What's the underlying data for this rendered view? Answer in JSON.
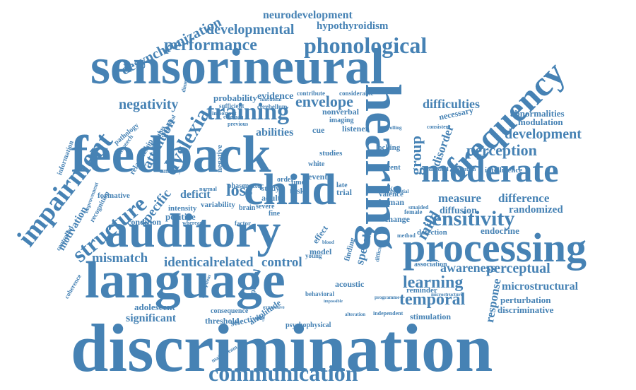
{
  "colors": {
    "word": "#4682B4",
    "background": "#FFFFFF"
  },
  "words": [
    {
      "text": "discrimination"
    },
    {
      "text": "sensorineural"
    },
    {
      "text": "language"
    },
    {
      "text": "auditory"
    },
    {
      "text": "feedback"
    },
    {
      "text": "hearing"
    },
    {
      "text": "processing"
    },
    {
      "text": "moderate"
    },
    {
      "text": "child"
    },
    {
      "text": "frequency"
    },
    {
      "text": "impairment"
    },
    {
      "text": "communication"
    },
    {
      "text": "structure"
    },
    {
      "text": "training"
    },
    {
      "text": "phonological"
    },
    {
      "text": "sensitivity"
    },
    {
      "text": "perception"
    },
    {
      "text": "development"
    },
    {
      "text": "developmental"
    },
    {
      "text": "performance"
    },
    {
      "text": "dyslexia"
    },
    {
      "text": "learning"
    },
    {
      "text": "perceptual"
    },
    {
      "text": "temporal"
    },
    {
      "text": "envelope"
    },
    {
      "text": "negativity"
    },
    {
      "text": "difficulties"
    },
    {
      "text": "desynchronization"
    },
    {
      "text": "neurodevelopment"
    },
    {
      "text": "hypothyroidism"
    },
    {
      "text": "group"
    },
    {
      "text": "loss"
    },
    {
      "text": "mild"
    },
    {
      "text": "mismatch"
    },
    {
      "text": "identical"
    },
    {
      "text": "related"
    },
    {
      "text": "control"
    },
    {
      "text": "specific"
    },
    {
      "text": "attention"
    },
    {
      "text": "motivation"
    },
    {
      "text": "awareness"
    },
    {
      "text": "measure"
    },
    {
      "text": "difference"
    },
    {
      "text": "microstructural"
    },
    {
      "text": "abilities"
    },
    {
      "text": "significant"
    },
    {
      "text": "adolescent"
    },
    {
      "text": "deficit"
    },
    {
      "text": "randomized"
    },
    {
      "text": "response"
    },
    {
      "text": "disorder"
    },
    {
      "text": "speech"
    },
    {
      "text": "evidence"
    },
    {
      "text": "probability"
    },
    {
      "text": "abnormalities"
    },
    {
      "text": "modulation"
    },
    {
      "text": "perturbation"
    },
    {
      "text": "discriminative"
    },
    {
      "text": "diffusion"
    },
    {
      "text": "endocrine"
    },
    {
      "text": "stimulation"
    },
    {
      "text": "reminder"
    },
    {
      "text": "acoustic"
    },
    {
      "text": "selectivity"
    },
    {
      "text": "amplitude"
    },
    {
      "text": "threshold"
    },
    {
      "text": "condition"
    },
    {
      "text": "positive"
    },
    {
      "text": "intensity"
    },
    {
      "text": "variability"
    },
    {
      "text": "formative"
    },
    {
      "text": "relationship"
    },
    {
      "text": "information"
    },
    {
      "text": "recognition"
    },
    {
      "text": "controlled"
    },
    {
      "text": "coherence"
    },
    {
      "text": "pathology"
    },
    {
      "text": "nonspeech"
    },
    {
      "text": "stimulus"
    },
    {
      "text": "negative"
    },
    {
      "text": "adult"
    },
    {
      "text": "task"
    },
    {
      "text": "event"
    },
    {
      "text": "trial"
    },
    {
      "text": "cue"
    },
    {
      "text": "listener"
    },
    {
      "text": "nonverbal"
    },
    {
      "text": "imaging"
    },
    {
      "text": "contribute"
    },
    {
      "text": "considerable"
    },
    {
      "text": "sufficient"
    },
    {
      "text": "cerebellum"
    },
    {
      "text": "functional"
    },
    {
      "text": "necessary"
    },
    {
      "text": "intelligence"
    },
    {
      "text": "spoken"
    },
    {
      "text": "human"
    },
    {
      "text": "valence"
    },
    {
      "text": "change"
    },
    {
      "text": "detection"
    },
    {
      "text": "association"
    },
    {
      "text": "different"
    },
    {
      "text": "locking"
    },
    {
      "text": "studies"
    },
    {
      "text": "white"
    },
    {
      "text": "model"
    },
    {
      "text": "effect"
    },
    {
      "text": "finding"
    },
    {
      "text": "study"
    },
    {
      "text": "severe"
    },
    {
      "text": "phase"
    },
    {
      "text": "matter"
    },
    {
      "text": "order"
    },
    {
      "text": "time"
    },
    {
      "text": "late"
    },
    {
      "text": "fine"
    },
    {
      "text": "brain"
    },
    {
      "text": "factor"
    },
    {
      "text": "young"
    },
    {
      "text": "spectral"
    },
    {
      "text": "behavioral"
    },
    {
      "text": "consequence"
    },
    {
      "text": "psychophysical"
    },
    {
      "text": "female"
    },
    {
      "text": "consistent"
    },
    {
      "text": "individual"
    },
    {
      "text": "education"
    },
    {
      "text": "dimension"
    },
    {
      "text": "improvement"
    },
    {
      "text": "coleman"
    },
    {
      "text": "previous"
    },
    {
      "text": "important"
    },
    {
      "text": "congenital"
    },
    {
      "text": "diffusivity"
    },
    {
      "text": "normal"
    },
    {
      "text": "whereas"
    },
    {
      "text": "mainstream"
    },
    {
      "text": "perceptions"
    },
    {
      "text": "difficulty"
    },
    {
      "text": "controlling"
    },
    {
      "text": "potential"
    },
    {
      "text": "smaided"
    },
    {
      "text": "method"
    },
    {
      "text": "independent"
    },
    {
      "text": "alteration"
    },
    {
      "text": "programme"
    },
    {
      "text": "microstructure"
    },
    {
      "text": "impossible"
    },
    {
      "text": "expressive"
    },
    {
      "text": "blood"
    }
  ]
}
